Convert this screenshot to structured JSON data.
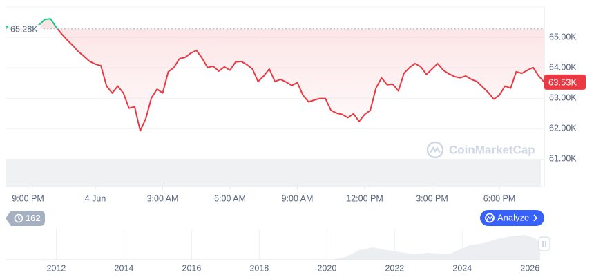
{
  "chart_data": {
    "type": "line",
    "x": [
      0,
      0.25,
      0.5,
      0.75,
      1,
      1.25,
      1.5,
      1.75,
      2,
      2.25,
      2.5,
      2.75,
      3,
      3.25,
      3.5,
      3.75,
      4,
      4.25,
      4.5,
      4.75,
      5,
      5.25,
      5.5,
      5.75,
      6,
      6.25,
      6.5,
      6.75,
      7,
      7.25,
      7.5,
      7.75,
      8,
      8.25,
      8.5,
      8.75,
      9,
      9.25,
      9.5,
      9.75,
      10,
      10.25,
      10.5,
      10.75,
      11,
      11.25,
      11.5,
      11.75,
      12,
      12.25,
      12.5,
      12.75,
      13,
      13.25,
      13.5,
      13.75,
      14,
      14.25,
      14.5,
      14.75,
      15,
      15.25,
      15.5,
      15.75,
      16,
      16.25,
      16.5,
      16.75,
      17,
      17.25,
      17.5,
      17.75,
      18,
      18.25,
      18.5,
      18.75,
      19,
      19.25,
      19.5,
      19.75,
      20,
      20.25,
      20.5,
      20.75,
      21,
      21.25,
      21.5,
      21.75,
      22,
      22.25,
      22.5,
      22.75,
      23,
      23.25,
      23.5,
      23.75,
      24
    ],
    "series": [
      {
        "color": "#ea3943",
        "values": [
          65360,
          65320,
          65230,
          65250,
          65320,
          65360,
          65410,
          65590,
          65610,
          65340,
          65110,
          64910,
          64730,
          64530,
          64370,
          64210,
          64120,
          64070,
          63400,
          63170,
          63400,
          63170,
          62670,
          62720,
          61930,
          62330,
          63010,
          63300,
          63170,
          63870,
          64010,
          64300,
          64340,
          64480,
          64570,
          64320,
          64010,
          64050,
          63890,
          64030,
          63920,
          64190,
          64210,
          64100,
          63960,
          63550,
          63730,
          63960,
          63550,
          63620,
          63530,
          63420,
          63510,
          63100,
          62880,
          62940,
          62990,
          62990,
          62600,
          62510,
          62470,
          62360,
          62490,
          62240,
          62470,
          62600,
          63330,
          63670,
          63440,
          63460,
          63240,
          63820,
          64010,
          64140,
          64030,
          63780,
          63960,
          64140,
          63920,
          63800,
          63710,
          63670,
          63730,
          63620,
          63550,
          63370,
          63190,
          62970,
          63100,
          63400,
          63330,
          63870,
          63820,
          63920,
          64010,
          63730,
          63530
        ]
      }
    ],
    "above_color": "#16c784",
    "xlim": [
      0,
      24
    ],
    "xticks": [
      {
        "value": 1,
        "label": "9:00 PM"
      },
      {
        "value": 4,
        "label": "4 Jun"
      },
      {
        "value": 7,
        "label": "3:00 AM"
      },
      {
        "value": 10,
        "label": "6:00 AM"
      },
      {
        "value": 13,
        "label": "9:00 AM"
      },
      {
        "value": 16,
        "label": "12:00 PM"
      },
      {
        "value": 19,
        "label": "3:00 PM"
      },
      {
        "value": 22,
        "label": "6:00 PM"
      }
    ],
    "ylim": [
      60100,
      66000
    ],
    "yticks": [
      {
        "value": 61000,
        "label": "61.00K"
      },
      {
        "value": 62000,
        "label": "62.00K"
      },
      {
        "value": 63000,
        "label": "63.00K"
      },
      {
        "value": 64000,
        "label": "64.00K"
      },
      {
        "value": 65000,
        "label": "65.00K"
      }
    ],
    "grid": true,
    "reference": {
      "value": 65280,
      "label": "65.28K"
    },
    "last_price": {
      "value": 63530,
      "label": "63.53K"
    },
    "watermark": "CoinMarketCap",
    "overview": {
      "xlim": [
        2010.5,
        2026.3
      ],
      "xticks": [
        2012,
        2014,
        2016,
        2018,
        2020,
        2022,
        2024,
        2026
      ]
    }
  },
  "ui": {
    "badge": "162",
    "button": "Analyze"
  }
}
